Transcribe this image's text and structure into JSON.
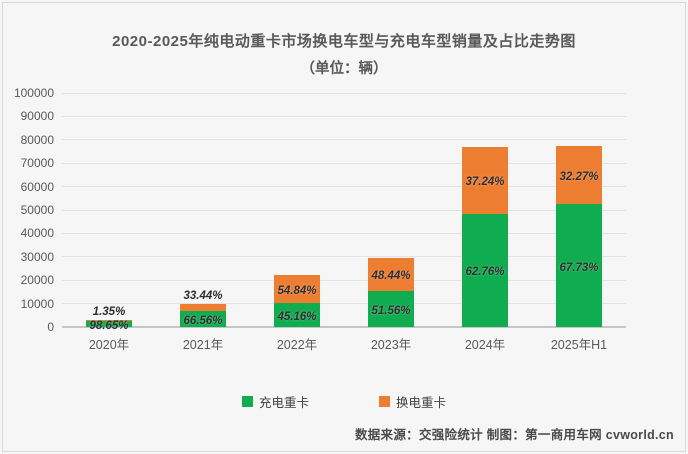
{
  "header": {
    "title_line1": "2020-2025年纯电动重卡市场换电车型与充电车型销量及占比走势图",
    "title_line2": "（单位：辆）"
  },
  "footer": {
    "source_text": "数据来源：交强险统计 制图：第一商用车网 cvworld.cn"
  },
  "colors": {
    "charging_green": "#10AC50",
    "swap_orange": "#ED7D31",
    "background": "#F6F6F6",
    "gridline": "#E3E3E3",
    "axis_line": "#C6C6C6",
    "axis_text": "#595959",
    "label_text": "#2E2E2E"
  },
  "legend": {
    "items": [
      {
        "label": "充电重卡",
        "color": "#10AC50"
      },
      {
        "label": "换电重卡",
        "color": "#ED7D31"
      }
    ]
  },
  "chart_data": {
    "type": "bar",
    "stacked": true,
    "title": "2020-2025年纯电动重卡市场换电车型与充电车型销量及占比走势图",
    "subtitle": "（单位：辆）",
    "unit": "辆",
    "categories": [
      "2020年",
      "2021年",
      "2022年",
      "2023年",
      "2024年",
      "2025年H1"
    ],
    "series": [
      {
        "name": "充电重卡",
        "color": "#10AC50",
        "values": [
          2565,
          6656,
          10071,
          15313,
          48388,
          52423
        ],
        "pct_labels": [
          "98.65%",
          "66.56%",
          "45.16%",
          "51.56%",
          "62.76%",
          "67.73%"
        ]
      },
      {
        "name": "换电重卡",
        "color": "#ED7D31",
        "values": [
          35,
          3344,
          12229,
          14387,
          28712,
          24977
        ],
        "pct_labels": [
          "1.35%",
          "33.44%",
          "54.84%",
          "48.44%",
          "37.24%",
          "32.27%"
        ]
      }
    ],
    "totals_estimated": [
      2600,
      10000,
      22300,
      29700,
      77100,
      77400
    ],
    "ylim": [
      0,
      100000
    ],
    "ytick_step": 10000,
    "yticks": [
      "0",
      "10000",
      "20000",
      "30000",
      "40000",
      "50000",
      "60000",
      "70000",
      "80000",
      "90000",
      "100000"
    ],
    "grid": true,
    "legend_position": "bottom"
  }
}
